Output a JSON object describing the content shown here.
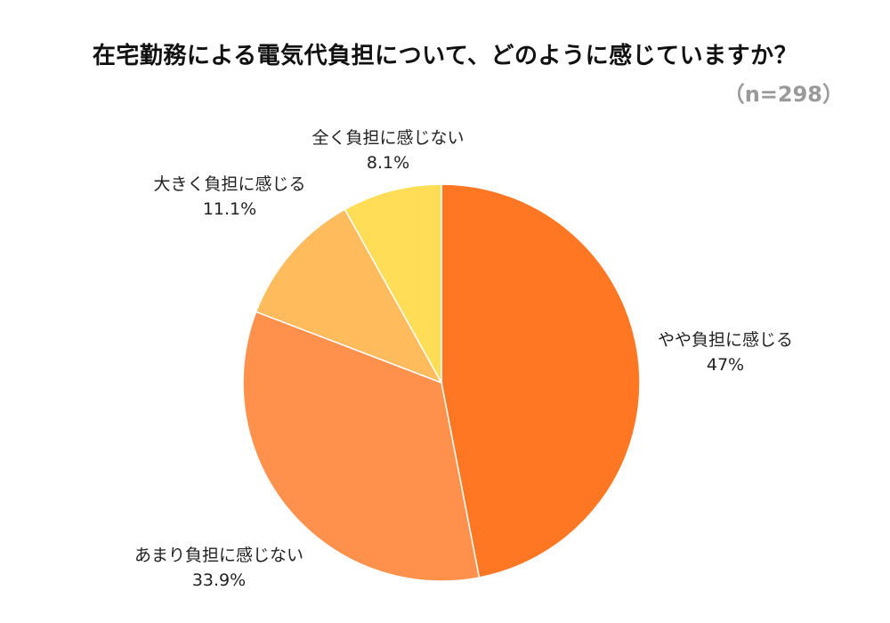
{
  "title": "在宅勤務による電気代負担について、どのように感じていますか？",
  "sample_size": "（n=298）",
  "chart_data": {
    "type": "pie",
    "title": "在宅勤務による電気代負担について、どのように感じていますか？",
    "slices": [
      {
        "label": "やや負担に感じる",
        "value": 47,
        "value_label": "47%",
        "color": "#FF7722"
      },
      {
        "label": "あまり負担に感じない",
        "value": 33.9,
        "value_label": "33.9%",
        "color": "#FF914D"
      },
      {
        "label": "大きく負担に感じる",
        "value": 11.1,
        "value_label": "11.1%",
        "color": "#FFBB5C"
      },
      {
        "label": "全く負担に感じない",
        "value": 8.1,
        "value_label": "8.1%",
        "color": "#FFDD57"
      }
    ]
  }
}
